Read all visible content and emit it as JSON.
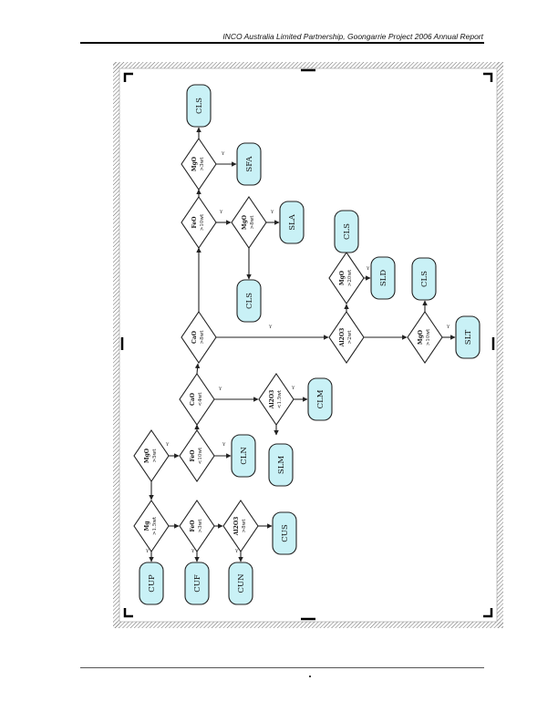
{
  "header": {
    "title": "INCO Australia Limited Partnership, Goongarrie Project 2006 Annual Report"
  },
  "colors": {
    "terminal_fill": "#c9f1f6",
    "stroke": "#222222",
    "hatch": "#666666"
  },
  "decisions": {
    "d_mg": {
      "line1": "Mg",
      "line2": ">1.5wt"
    },
    "d_fe": {
      "line1": "FeO",
      "line2": ">3wt"
    },
    "d_al_cu": {
      "line1": "Al2O3",
      "line2": ">8wt"
    },
    "d_mgo_top": {
      "line1": "MgO",
      "line2": ">5wt"
    },
    "d_feo_mid": {
      "line1": "FeO",
      "line2": "<10wt"
    },
    "d_cao1": {
      "line1": "CaO",
      "line2": "<4wt"
    },
    "d_al_clm": {
      "line1": "Al2O3",
      "line2": "<1.5wt"
    },
    "d_cao2": {
      "line1": "CaO",
      "line2": ">8wt"
    },
    "d_al_sl": {
      "line1": "Al2O3",
      "line2": ">2wt"
    },
    "d_mgo_sld": {
      "line1": "MgO",
      "line2": ">20wt"
    },
    "d_mgo_slt": {
      "line1": "MgO",
      "line2": ">10wt"
    },
    "d_feo_up": {
      "line1": "FeO",
      "line2": ">10wt"
    },
    "d_mgo_sla": {
      "line1": "MgO",
      "line2": ">8wt"
    },
    "d_mgo_sfa": {
      "line1": "MgO",
      "line2": ">3wt"
    }
  },
  "terminals": {
    "t_cup": "CUP",
    "t_cuf": "CUF",
    "t_cun": "CUN",
    "t_cus": "CUS",
    "t_cln": "CLN",
    "t_slm": "SLM",
    "t_clm": "CLM",
    "t_cls_top": "CLS",
    "t_sfa": "SFA",
    "t_sla": "SLA",
    "t_cls_mid": "CLS",
    "t_cls_sld": "CLS",
    "t_sld": "SLD",
    "t_cls_slt": "CLS",
    "t_slt": "SLT"
  },
  "edge_label": "Y"
}
